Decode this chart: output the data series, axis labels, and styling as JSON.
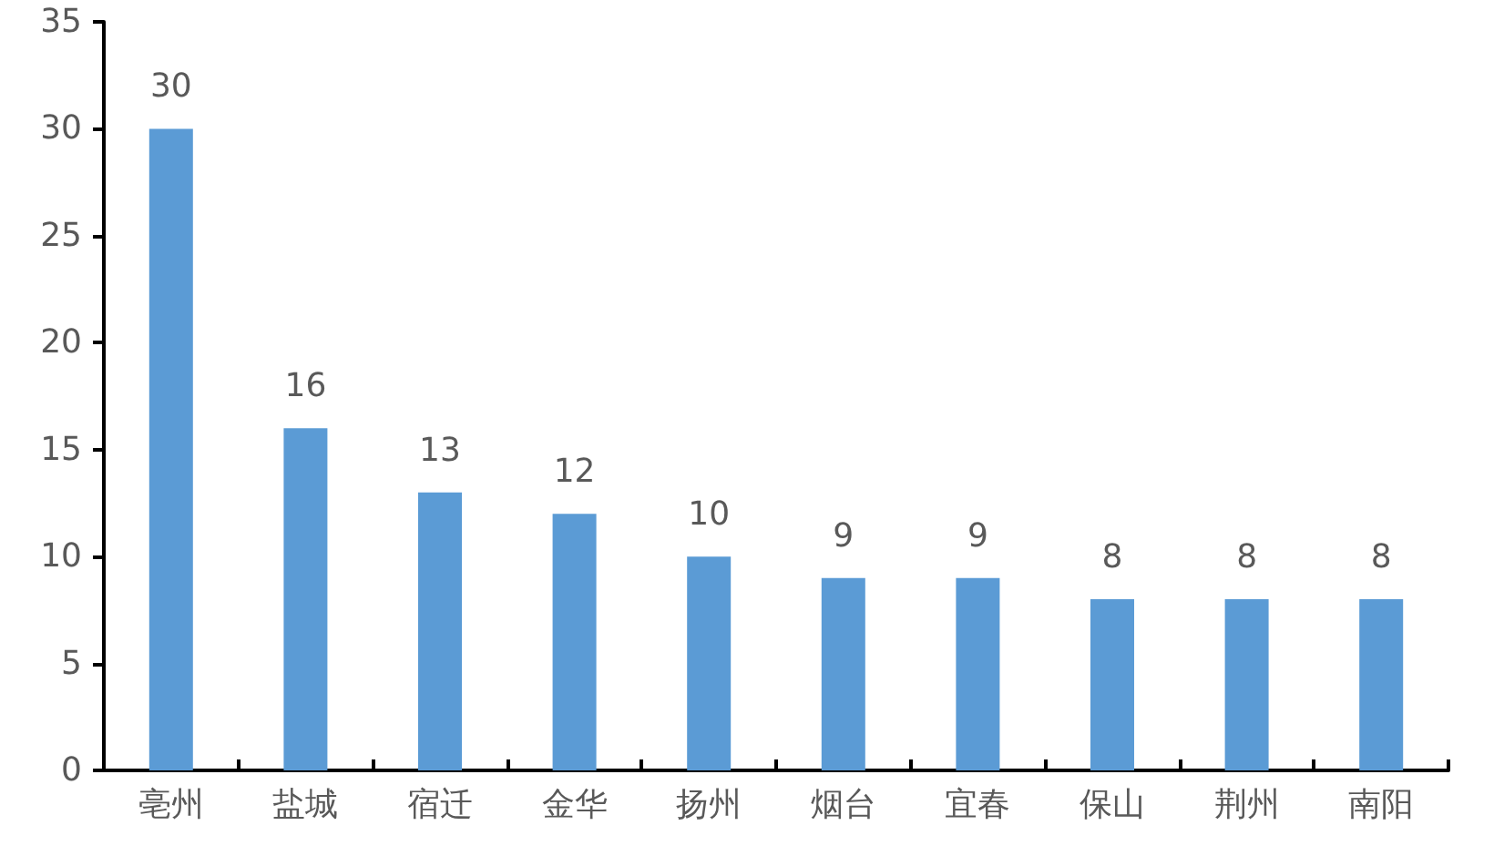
{
  "chart_data": {
    "type": "bar",
    "categories": [
      "亳州",
      "盐城",
      "宿迁",
      "金华",
      "扬州",
      "烟台",
      "宜春",
      "保山",
      "荆州",
      "南阳"
    ],
    "values": [
      30,
      16,
      13,
      12,
      10,
      9,
      9,
      8,
      8,
      8
    ],
    "color": "#5b9bd5",
    "ylim": [
      0,
      35
    ],
    "yticks": [
      0,
      5,
      10,
      15,
      20,
      25,
      30,
      35
    ],
    "grid": false,
    "data_labels": true
  }
}
